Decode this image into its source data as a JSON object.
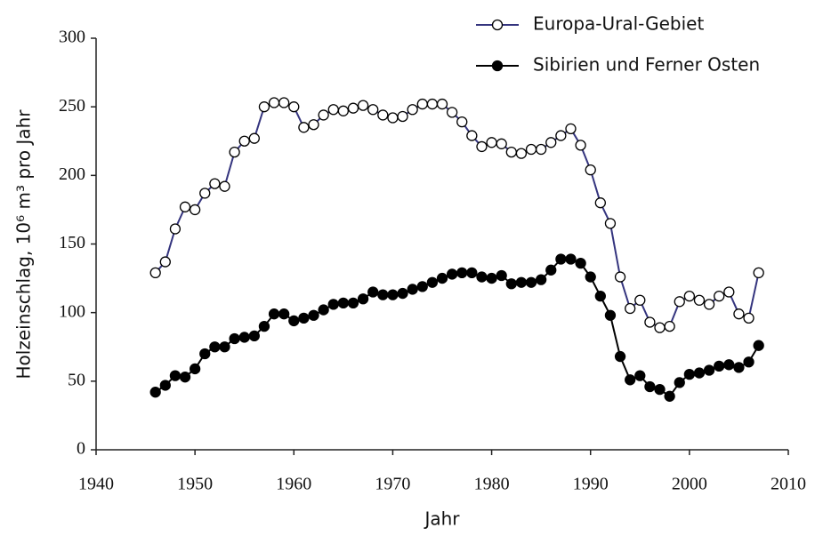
{
  "chart_data": {
    "type": "line",
    "x_label": "Jahr",
    "y_label": "Holzeinschlag, 10⁶ m³ pro Jahr",
    "x": [
      1946,
      1947,
      1948,
      1949,
      1950,
      1951,
      1952,
      1953,
      1954,
      1955,
      1956,
      1957,
      1958,
      1959,
      1960,
      1961,
      1962,
      1963,
      1964,
      1965,
      1966,
      1967,
      1968,
      1969,
      1970,
      1971,
      1972,
      1973,
      1974,
      1975,
      1976,
      1977,
      1978,
      1979,
      1980,
      1981,
      1982,
      1983,
      1984,
      1985,
      1986,
      1987,
      1988,
      1989,
      1990,
      1991,
      1992,
      1993,
      1994,
      1995,
      1996,
      1997,
      1998,
      1999,
      2000,
      2001,
      2002,
      2003,
      2004,
      2005,
      2006,
      2007
    ],
    "series": [
      {
        "name": "Europa-Ural-Gebiet",
        "color": "#34347e",
        "marker_fill": "#ffffff",
        "values": [
          129,
          137,
          161,
          177,
          175,
          187,
          194,
          192,
          217,
          225,
          227,
          250,
          253,
          253,
          250,
          235,
          237,
          244,
          248,
          247,
          249,
          251,
          248,
          244,
          242,
          243,
          248,
          252,
          252,
          252,
          246,
          239,
          229,
          221,
          224,
          223,
          217,
          216,
          219,
          219,
          224,
          229,
          234,
          222,
          204,
          180,
          165,
          126,
          103,
          109,
          93,
          89,
          90,
          108,
          112,
          109,
          106,
          112,
          115,
          99,
          96,
          129
        ]
      },
      {
        "name": "Sibirien und Ferner Osten",
        "color": "#000000",
        "marker_fill": "#000000",
        "values": [
          42,
          47,
          54,
          53,
          59,
          70,
          75,
          75,
          81,
          82,
          83,
          90,
          99,
          99,
          94,
          96,
          98,
          102,
          106,
          107,
          107,
          110,
          115,
          113,
          113,
          114,
          117,
          119,
          122,
          125,
          128,
          129,
          129,
          126,
          125,
          127,
          121,
          122,
          122,
          124,
          131,
          139,
          139,
          136,
          126,
          112,
          98,
          68,
          51,
          54,
          46,
          44,
          39,
          49,
          55,
          56,
          58,
          61,
          62,
          60,
          64,
          76
        ]
      }
    ],
    "xlim": [
      1940,
      2010
    ],
    "xticks": [
      1940,
      1950,
      1960,
      1970,
      1980,
      1990,
      2000,
      2010
    ],
    "ylim": [
      0,
      300
    ],
    "yticks": [
      0,
      50,
      100,
      150,
      200,
      250,
      300
    ],
    "legend": "top-right"
  }
}
